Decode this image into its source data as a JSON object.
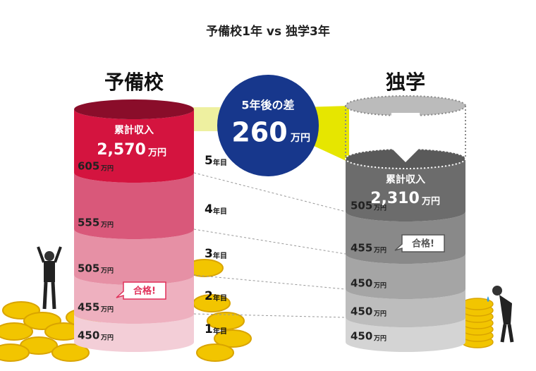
{
  "title": "予備校1年 vs 独学3年",
  "left": {
    "name": "予備校",
    "total_label": "累計収入",
    "total": "2,570",
    "total_unit": "万円",
    "segments": [
      {
        "value": "450",
        "unit": "万円"
      },
      {
        "value": "455",
        "unit": "万円"
      },
      {
        "value": "505",
        "unit": "万円"
      },
      {
        "value": "555",
        "unit": "万円"
      },
      {
        "value": "605",
        "unit": "万円"
      }
    ],
    "badge": "合格!"
  },
  "right": {
    "name": "独学",
    "total_label": "累計収入",
    "total": "2,310",
    "total_unit": "万円",
    "segments": [
      {
        "value": "450",
        "unit": "万円"
      },
      {
        "value": "450",
        "unit": "万円"
      },
      {
        "value": "450",
        "unit": "万円"
      },
      {
        "value": "455",
        "unit": "万円"
      },
      {
        "value": "505",
        "unit": "万円"
      }
    ],
    "badge": "合格!"
  },
  "years": [
    {
      "num": "1",
      "suffix": "年目"
    },
    {
      "num": "2",
      "suffix": "年目"
    },
    {
      "num": "3",
      "suffix": "年目"
    },
    {
      "num": "4",
      "suffix": "年目"
    },
    {
      "num": "5",
      "suffix": "年目"
    }
  ],
  "diff": {
    "label": "5年後の差",
    "value": "260",
    "unit": "万円"
  }
}
